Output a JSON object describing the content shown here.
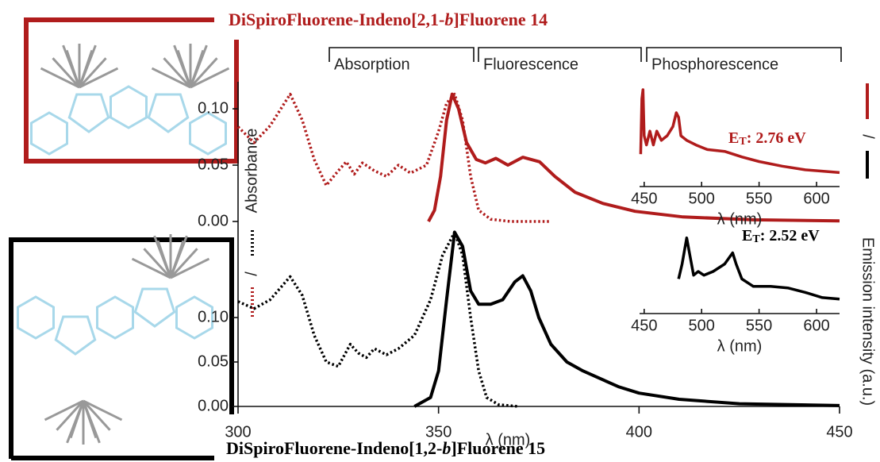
{
  "molecules": [
    {
      "title": [
        "DiSpiroFluorene-Indeno[2,1-",
        "b",
        "]Fluorene 14"
      ]
    },
    {
      "title": [
        "DiSpiroFluorene-Indeno[1,2-",
        "b",
        "]Fluorene 15"
      ]
    }
  ],
  "chart_data": {
    "type": "line",
    "xlabel": "λ (nm)",
    "xlim": [
      300,
      450
    ],
    "xticks": [
      300,
      350,
      400,
      450
    ],
    "section_labels": [
      "Absorption",
      "Fluorescence",
      "Phosphorescence"
    ],
    "left_label": "Absorbance",
    "right_label": "Emission intensity (a.u.)",
    "legend_separator": "/",
    "panels": [
      {
        "color": "#b01c1c",
        "ylim": [
          0,
          0.124
        ],
        "yticks": [
          {
            "value": 0,
            "label": "0.00"
          },
          0.05,
          {
            "value": 0.1,
            "label": "0.10"
          }
        ],
        "absorption": {
          "x": [
            300,
            304,
            308,
            313,
            316,
            319,
            322,
            325,
            327,
            329,
            331,
            334,
            337,
            340,
            343,
            347,
            350,
            352,
            354,
            356,
            358,
            360,
            363,
            368,
            378
          ],
          "values": [
            0.084,
            0.07,
            0.085,
            0.113,
            0.09,
            0.055,
            0.032,
            0.045,
            0.053,
            0.042,
            0.052,
            0.045,
            0.04,
            0.05,
            0.043,
            0.05,
            0.08,
            0.105,
            0.113,
            0.09,
            0.04,
            0.01,
            0.002,
            0,
            0
          ]
        },
        "emission": {
          "x": [
            347.5,
            349,
            350.5,
            352,
            353.4,
            355,
            357,
            359.4,
            361.7,
            364.3,
            367.3,
            371,
            375.2,
            379,
            384,
            391,
            399,
            411,
            428.6,
            450
          ],
          "values": [
            0,
            0.01,
            0.04,
            0.09,
            0.113,
            0.1,
            0.07,
            0.055,
            0.052,
            0.056,
            0.05,
            0.057,
            0.053,
            0.04,
            0.026,
            0.016,
            0.009,
            0.004,
            0.0015,
            0.0005
          ]
        },
        "inset": {
          "xlabel": "λ (nm)",
          "xlim": [
            446,
            620
          ],
          "xticks": [
            450,
            500,
            550,
            600
          ],
          "ylim": [
            0,
            1
          ],
          "x": [
            447,
            448,
            449,
            450,
            452,
            455,
            458,
            461,
            465,
            470,
            475,
            478,
            480,
            482,
            487,
            495,
            505,
            520,
            535,
            550,
            570,
            590,
            620
          ],
          "values": [
            0.3,
            0.9,
            1.0,
            0.5,
            0.4,
            0.55,
            0.4,
            0.55,
            0.45,
            0.5,
            0.6,
            0.75,
            0.7,
            0.5,
            0.45,
            0.4,
            0.35,
            0.33,
            0.27,
            0.22,
            0.17,
            0.13,
            0.1
          ],
          "annotation": {
            "symbol": "E",
            "subscript": "T",
            "text": ": 2.76 eV"
          }
        }
      },
      {
        "color": "#000000",
        "ylim": [
          0,
          0.2
        ],
        "yticks": [
          {
            "value": 0,
            "label": "0.00"
          },
          0.05,
          {
            "value": 0.1,
            "label": "0.10"
          }
        ],
        "absorption": {
          "x": [
            300,
            304,
            308,
            313,
            316,
            319,
            322,
            325,
            328,
            330,
            332,
            334,
            337,
            340,
            344,
            348,
            351,
            354,
            356,
            358,
            360,
            362,
            365,
            370
          ],
          "values": [
            0.118,
            0.11,
            0.12,
            0.146,
            0.125,
            0.08,
            0.05,
            0.045,
            0.07,
            0.06,
            0.055,
            0.065,
            0.058,
            0.065,
            0.08,
            0.12,
            0.17,
            0.196,
            0.17,
            0.1,
            0.04,
            0.01,
            0.002,
            0
          ]
        },
        "emission": {
          "x": [
            344,
            348,
            350,
            352,
            354,
            356,
            358,
            360,
            363,
            366,
            369,
            371,
            373,
            375,
            378,
            382,
            386,
            390,
            395,
            400,
            410,
            425,
            450
          ],
          "values": [
            0,
            0.01,
            0.04,
            0.12,
            0.196,
            0.18,
            0.13,
            0.115,
            0.115,
            0.12,
            0.14,
            0.147,
            0.13,
            0.1,
            0.07,
            0.05,
            0.04,
            0.032,
            0.022,
            0.015,
            0.008,
            0.003,
            0.001
          ]
        },
        "inset": {
          "xlabel": "λ (nm)",
          "xlim": [
            446,
            620
          ],
          "xticks": [
            450,
            500,
            550,
            600
          ],
          "ylim": [
            0,
            1
          ],
          "x": [
            480,
            483,
            487,
            490,
            493,
            497,
            502,
            510,
            520,
            527,
            530,
            535,
            545,
            560,
            575,
            590,
            605,
            620
          ],
          "values": [
            0.4,
            0.6,
            0.95,
            0.7,
            0.45,
            0.5,
            0.45,
            0.5,
            0.6,
            0.75,
            0.6,
            0.4,
            0.3,
            0.3,
            0.28,
            0.22,
            0.15,
            0.13
          ],
          "annotation": {
            "symbol": "E",
            "subscript": "T",
            "text": ": 2.52 eV"
          }
        }
      }
    ]
  }
}
